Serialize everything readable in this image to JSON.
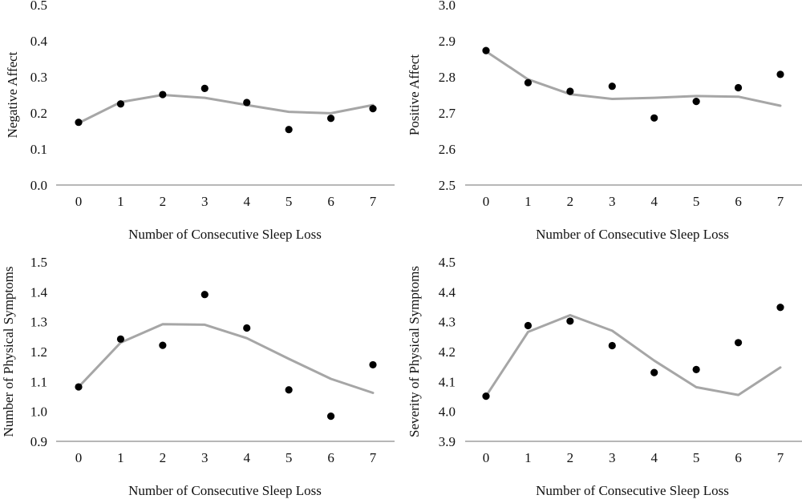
{
  "chart_data": [
    {
      "type": "line",
      "title": "",
      "xlabel": "Number of Consecutive Sleep Loss",
      "ylabel": "Negative Affect",
      "x": [
        0,
        1,
        2,
        3,
        4,
        5,
        6,
        7
      ],
      "xticks": [
        "0",
        "1",
        "2",
        "3",
        "4",
        "5",
        "6",
        "7"
      ],
      "yticks": [
        "0.0",
        "0.1",
        "0.2",
        "0.3",
        "0.4",
        "0.5"
      ],
      "ylim": [
        0.0,
        0.5
      ],
      "grid": false,
      "series": [
        {
          "kind": "scatter",
          "color": "#000000",
          "values": [
            0.174,
            0.225,
            0.251,
            0.268,
            0.229,
            0.154,
            0.185,
            0.212
          ]
        },
        {
          "kind": "line",
          "color": "#a6a6a6",
          "values": [
            0.172,
            0.23,
            0.25,
            0.242,
            0.222,
            0.203,
            0.199,
            0.222
          ]
        }
      ]
    },
    {
      "type": "line",
      "title": "",
      "xlabel": "Number of Consecutive Sleep Loss",
      "ylabel": "Positive Affect",
      "x": [
        0,
        1,
        2,
        3,
        4,
        5,
        6,
        7
      ],
      "xticks": [
        "0",
        "1",
        "2",
        "3",
        "4",
        "5",
        "6",
        "7"
      ],
      "yticks": [
        "2.5",
        "2.6",
        "2.7",
        "2.8",
        "2.9",
        "3.0"
      ],
      "ylim": [
        2.5,
        3.0
      ],
      "grid": false,
      "series": [
        {
          "kind": "scatter",
          "color": "#000000",
          "values": [
            2.873,
            2.784,
            2.76,
            2.774,
            2.686,
            2.732,
            2.77,
            2.807
          ]
        },
        {
          "kind": "line",
          "color": "#a6a6a6",
          "values": [
            2.871,
            2.793,
            2.752,
            2.739,
            2.742,
            2.747,
            2.745,
            2.72
          ]
        }
      ]
    },
    {
      "type": "line",
      "title": "",
      "xlabel": "Number of Consecutive Sleep Loss",
      "ylabel": "Number of Physical Symptoms",
      "x": [
        0,
        1,
        2,
        3,
        4,
        5,
        6,
        7
      ],
      "xticks": [
        "0",
        "1",
        "2",
        "3",
        "4",
        "5",
        "6",
        "7"
      ],
      "yticks": [
        "0.9",
        "1.0",
        "1.1",
        "1.2",
        "1.3",
        "1.4",
        "1.5"
      ],
      "ylim": [
        0.9,
        1.5
      ],
      "grid": false,
      "series": [
        {
          "kind": "scatter",
          "color": "#000000",
          "values": [
            1.082,
            1.242,
            1.221,
            1.391,
            1.279,
            1.072,
            0.984,
            1.156
          ]
        },
        {
          "kind": "line",
          "color": "#a6a6a6",
          "values": [
            1.082,
            1.23,
            1.292,
            1.29,
            1.245,
            1.176,
            1.109,
            1.062
          ]
        }
      ]
    },
    {
      "type": "line",
      "title": "",
      "xlabel": "Number of Consecutive Sleep Loss",
      "ylabel": "Severity of Physical Symptoms",
      "x": [
        0,
        1,
        2,
        3,
        4,
        5,
        6,
        7
      ],
      "xticks": [
        "0",
        "1",
        "2",
        "3",
        "4",
        "5",
        "6",
        "7"
      ],
      "yticks": [
        "3.9",
        "4.0",
        "4.1",
        "4.2",
        "4.3",
        "4.4",
        "4.5"
      ],
      "ylim": [
        3.9,
        4.5
      ],
      "grid": false,
      "series": [
        {
          "kind": "scatter",
          "color": "#000000",
          "values": [
            4.051,
            4.287,
            4.302,
            4.22,
            4.13,
            4.14,
            4.23,
            4.348
          ]
        },
        {
          "kind": "line",
          "color": "#a6a6a6",
          "values": [
            4.051,
            4.266,
            4.322,
            4.27,
            4.17,
            4.081,
            4.055,
            4.147
          ]
        }
      ]
    }
  ]
}
